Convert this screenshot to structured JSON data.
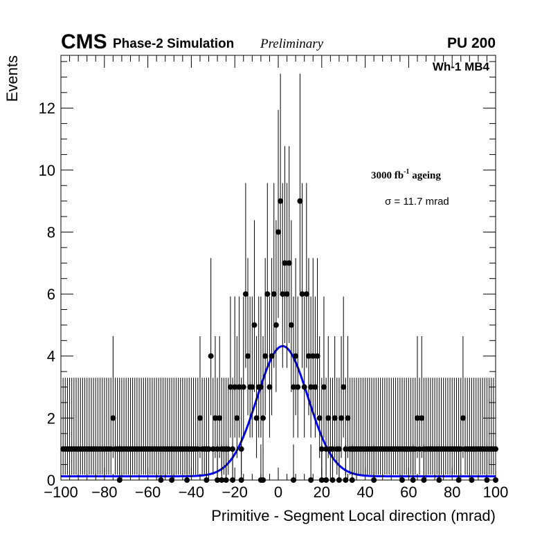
{
  "header": {
    "cms": "CMS",
    "subtitle": "Phase-2 Simulation",
    "preliminary": "Preliminary",
    "pileup": "PU 200"
  },
  "annotations": {
    "station": "Wh-1 MB4",
    "ageing_prefix": "3000 fb",
    "ageing_exp": "-1",
    "ageing_suffix": " ageing",
    "sigma": "σ = 11.7 mrad"
  },
  "chart_data": {
    "type": "scatter",
    "title": "",
    "xlabel": "Primitive - Segment Local direction (mrad)",
    "ylabel": "Events",
    "xlim": [
      -100,
      100
    ],
    "ylim": [
      0,
      13.7
    ],
    "x_ticks": [
      -100,
      -80,
      -60,
      -40,
      -20,
      0,
      20,
      40,
      60,
      80,
      100
    ],
    "x_tick_labels": [
      "−100",
      "−80",
      "−60",
      "−40",
      "−20",
      "0",
      "20",
      "40",
      "60",
      "80",
      "100"
    ],
    "y_ticks": [
      0,
      2,
      4,
      6,
      8,
      10,
      12
    ],
    "y_tick_labels": [
      "0",
      "2",
      "4",
      "6",
      "8",
      "10",
      "12"
    ],
    "grid": false,
    "series": [
      {
        "kind": "histogram_points_with_poisson_errors",
        "color": "#000000",
        "bins": [
          [
            -99,
            1
          ],
          [
            -98,
            1
          ],
          [
            -97,
            1
          ],
          [
            -96,
            1
          ],
          [
            -95,
            1
          ],
          [
            -94,
            1
          ],
          [
            -93,
            1
          ],
          [
            -92,
            1
          ],
          [
            -91,
            1
          ],
          [
            -90,
            1
          ],
          [
            -89,
            1
          ],
          [
            -88,
            1
          ],
          [
            -87,
            1
          ],
          [
            -86,
            1
          ],
          [
            -85,
            1
          ],
          [
            -84,
            1
          ],
          [
            -83,
            1
          ],
          [
            -82,
            1
          ],
          [
            -81,
            1
          ],
          [
            -80,
            1
          ],
          [
            -79,
            1
          ],
          [
            -78,
            1
          ],
          [
            -77,
            1
          ],
          [
            -76,
            2
          ],
          [
            -75,
            1
          ],
          [
            -74,
            1
          ],
          [
            -73,
            1
          ],
          [
            -72,
            1
          ],
          [
            -71,
            1
          ],
          [
            -70,
            1
          ],
          [
            -69,
            1
          ],
          [
            -68,
            1
          ],
          [
            -67,
            1
          ],
          [
            -66,
            1
          ],
          [
            -65,
            1
          ],
          [
            -64,
            1
          ],
          [
            -63,
            1
          ],
          [
            -62,
            1
          ],
          [
            -61,
            1
          ],
          [
            -60,
            1
          ],
          [
            -59,
            1
          ],
          [
            -58,
            1
          ],
          [
            -57,
            1
          ],
          [
            -56,
            1
          ],
          [
            -55,
            1
          ],
          [
            -54,
            1
          ],
          [
            -53,
            1
          ],
          [
            -52,
            1
          ],
          [
            -51,
            1
          ],
          [
            -50,
            1
          ],
          [
            -49,
            1
          ],
          [
            -48,
            1
          ],
          [
            -47,
            1
          ],
          [
            -46,
            1
          ],
          [
            -45,
            1
          ],
          [
            -44,
            1
          ],
          [
            -43,
            1
          ],
          [
            -42,
            1
          ],
          [
            -41,
            1
          ],
          [
            -40,
            1
          ],
          [
            -39,
            1
          ],
          [
            -38,
            1
          ],
          [
            -37,
            1
          ],
          [
            -36,
            2
          ],
          [
            -35,
            1
          ],
          [
            -34,
            1
          ],
          [
            -33,
            1
          ],
          [
            -32,
            1
          ],
          [
            -31,
            4
          ],
          [
            -30,
            1
          ],
          [
            -29,
            2
          ],
          [
            -28,
            1
          ],
          [
            -27,
            2
          ],
          [
            -26,
            1
          ],
          [
            -25,
            1
          ],
          [
            -24,
            1
          ],
          [
            -23,
            1
          ],
          [
            -22,
            3
          ],
          [
            -21,
            1
          ],
          [
            -20,
            3
          ],
          [
            -19,
            2
          ],
          [
            -18,
            3
          ],
          [
            -17,
            1
          ],
          [
            -16,
            3
          ],
          [
            -15,
            6
          ],
          [
            -14,
            4
          ],
          [
            -13,
            3
          ],
          [
            -12,
            3
          ],
          [
            -11,
            5
          ],
          [
            -10,
            2
          ],
          [
            -9,
            3
          ],
          [
            -8,
            3
          ],
          [
            -7,
            2
          ],
          [
            -6,
            4
          ],
          [
            -5,
            6
          ],
          [
            -4,
            3
          ],
          [
            -3,
            4
          ],
          [
            -2,
            6
          ],
          [
            -1,
            5
          ],
          [
            0,
            8
          ],
          [
            1,
            9
          ],
          [
            2,
            6
          ],
          [
            3,
            7
          ],
          [
            4,
            6
          ],
          [
            5,
            7
          ],
          [
            6,
            5
          ],
          [
            7,
            3
          ],
          [
            8,
            4
          ],
          [
            9,
            3
          ],
          [
            10,
            9
          ],
          [
            11,
            6
          ],
          [
            12,
            3
          ],
          [
            13,
            6
          ],
          [
            14,
            4
          ],
          [
            15,
            3
          ],
          [
            16,
            4
          ],
          [
            17,
            3
          ],
          [
            18,
            4
          ],
          [
            19,
            2
          ],
          [
            20,
            1
          ],
          [
            21,
            3
          ],
          [
            22,
            1
          ],
          [
            23,
            2
          ],
          [
            24,
            1
          ],
          [
            25,
            1
          ],
          [
            26,
            2
          ],
          [
            27,
            1
          ],
          [
            28,
            1
          ],
          [
            29,
            2
          ],
          [
            30,
            3
          ],
          [
            31,
            1
          ],
          [
            32,
            2
          ],
          [
            33,
            1
          ],
          [
            34,
            1
          ],
          [
            35,
            1
          ],
          [
            36,
            1
          ],
          [
            37,
            1
          ],
          [
            38,
            1
          ],
          [
            39,
            1
          ],
          [
            40,
            1
          ],
          [
            41,
            1
          ],
          [
            42,
            1
          ],
          [
            43,
            1
          ],
          [
            44,
            1
          ],
          [
            45,
            1
          ],
          [
            46,
            1
          ],
          [
            47,
            1
          ],
          [
            48,
            1
          ],
          [
            49,
            1
          ],
          [
            50,
            1
          ],
          [
            51,
            1
          ],
          [
            52,
            1
          ],
          [
            53,
            1
          ],
          [
            54,
            1
          ],
          [
            55,
            1
          ],
          [
            56,
            1
          ],
          [
            57,
            1
          ],
          [
            58,
            1
          ],
          [
            59,
            1
          ],
          [
            60,
            1
          ],
          [
            61,
            1
          ],
          [
            62,
            1
          ],
          [
            63,
            1
          ],
          [
            64,
            2
          ],
          [
            65,
            1
          ],
          [
            66,
            2
          ],
          [
            67,
            1
          ],
          [
            68,
            1
          ],
          [
            69,
            1
          ],
          [
            70,
            1
          ],
          [
            71,
            1
          ],
          [
            72,
            1
          ],
          [
            73,
            1
          ],
          [
            74,
            1
          ],
          [
            75,
            1
          ],
          [
            76,
            1
          ],
          [
            77,
            1
          ],
          [
            78,
            1
          ],
          [
            79,
            1
          ],
          [
            80,
            1
          ],
          [
            81,
            1
          ],
          [
            82,
            1
          ],
          [
            83,
            1
          ],
          [
            84,
            1
          ],
          [
            85,
            2
          ],
          [
            86,
            1
          ],
          [
            87,
            1
          ],
          [
            88,
            1
          ],
          [
            89,
            1
          ],
          [
            90,
            1
          ],
          [
            91,
            1
          ],
          [
            92,
            1
          ],
          [
            93,
            1
          ],
          [
            94,
            1
          ],
          [
            95,
            1
          ],
          [
            96,
            1
          ],
          [
            97,
            1
          ],
          [
            98,
            1
          ],
          [
            99,
            1
          ],
          [
            100,
            1
          ]
        ],
        "zero_bins": [
          -73,
          -54,
          -49,
          -42,
          -33,
          -28,
          -26,
          -24,
          -21,
          -17,
          -8,
          -7,
          7,
          15,
          20,
          22,
          25,
          28,
          31,
          34,
          44,
          57,
          62,
          67,
          74,
          83,
          89,
          96,
          100
        ]
      },
      {
        "kind": "fit_curve",
        "model": "gaussian",
        "color": "#0000ff",
        "amplitude": 4.2,
        "mean": 2,
        "sigma": 11.7,
        "baseline": 0.12
      }
    ]
  }
}
